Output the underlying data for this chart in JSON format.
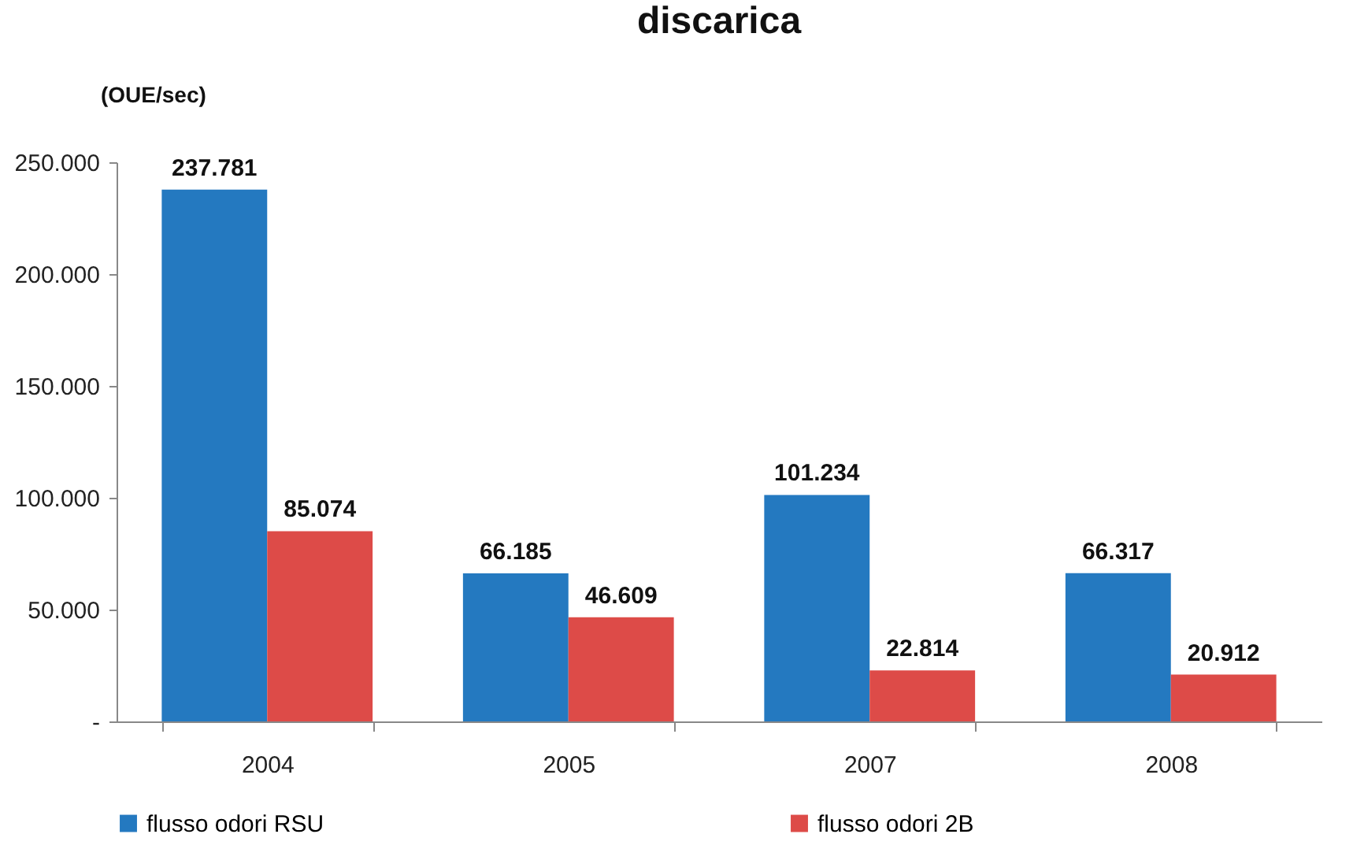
{
  "chart_data": {
    "type": "bar",
    "title": "discarica",
    "ylabel": "(OUE/sec)",
    "categories": [
      "2004",
      "2005",
      "2007",
      "2008"
    ],
    "series": [
      {
        "name": "flusso odori  RSU",
        "color": "#2479c0",
        "values": [
          237781,
          66185,
          101234,
          66317
        ],
        "value_labels": [
          "237.781",
          "66.185",
          "101.234",
          "66.317"
        ]
      },
      {
        "name": "flusso odori 2B",
        "color": "#dd4b48",
        "values": [
          85074,
          46609,
          22814,
          20912
        ],
        "value_labels": [
          "85.074",
          "46.609",
          "22.814",
          "20.912"
        ]
      }
    ],
    "ylim": [
      0,
      250000
    ],
    "yticks": [
      {
        "value": 0,
        "label": "-"
      },
      {
        "value": 50000,
        "label": "50.000"
      },
      {
        "value": 100000,
        "label": "100.000"
      },
      {
        "value": 150000,
        "label": "150.000"
      },
      {
        "value": 200000,
        "label": "200.000"
      },
      {
        "value": 250000,
        "label": "250.000"
      }
    ],
    "grid": false,
    "legend": "bottom"
  }
}
